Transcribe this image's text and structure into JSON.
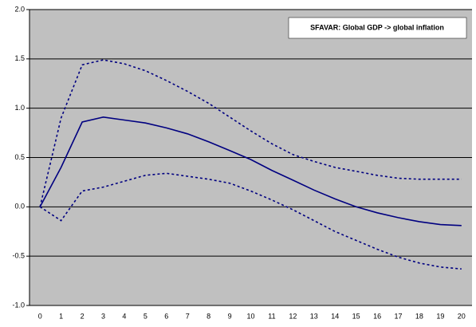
{
  "chart_data": {
    "type": "line",
    "title": "SFAVAR: Global GDP -> global inflation",
    "categories": [
      "0",
      "1",
      "2",
      "3",
      "4",
      "5",
      "6",
      "7",
      "8",
      "9",
      "10",
      "11",
      "12",
      "13",
      "14",
      "15",
      "16",
      "17",
      "18",
      "19",
      "20"
    ],
    "series": [
      {
        "color": "#000080",
        "dashed": false,
        "values": [
          0,
          0.4,
          0.86,
          0.91,
          0.88,
          0.85,
          0.8,
          0.74,
          0.66,
          0.57,
          0.48,
          0.37,
          0.27,
          0.17,
          0.08,
          0.0,
          -0.06,
          -0.11,
          -0.15,
          -0.18,
          -0.19
        ]
      },
      {
        "color": "#000080",
        "dashed": true,
        "values": [
          0,
          0.9,
          1.44,
          1.49,
          1.45,
          1.38,
          1.28,
          1.17,
          1.05,
          0.91,
          0.77,
          0.64,
          0.53,
          0.46,
          0.4,
          0.36,
          0.32,
          0.29,
          0.28,
          0.28,
          0.28
        ]
      },
      {
        "color": "#000080",
        "dashed": true,
        "values": [
          0,
          -0.14,
          0.16,
          0.2,
          0.26,
          0.32,
          0.34,
          0.31,
          0.28,
          0.24,
          0.16,
          0.07,
          -0.03,
          -0.14,
          -0.25,
          -0.34,
          -0.43,
          -0.51,
          -0.57,
          -0.61,
          -0.63
        ]
      }
    ],
    "ylim": [
      -1,
      2
    ],
    "yticks": [
      {
        "value": -1,
        "label": "-1.0"
      },
      {
        "value": -0.5,
        "label": "-0.5"
      },
      {
        "value": 0,
        "label": "0.0"
      },
      {
        "value": 0.5,
        "label": "0.5"
      },
      {
        "value": 1,
        "label": "1.0"
      },
      {
        "value": 1.5,
        "label": "1.5"
      },
      {
        "value": 2,
        "label": "2.0"
      }
    ],
    "grid": true,
    "plot_background": "#c0c0c0"
  }
}
